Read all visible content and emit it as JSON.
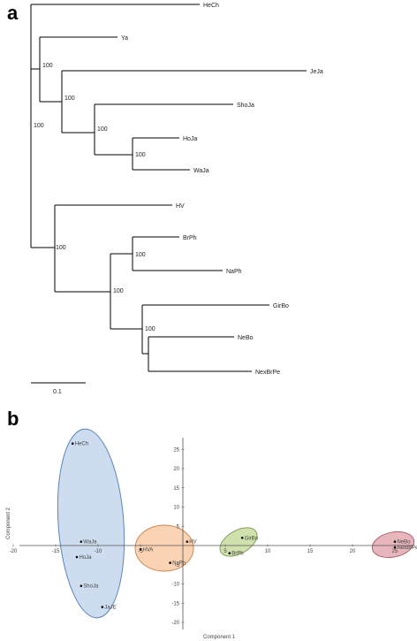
{
  "panel_a": {
    "label": "a",
    "leaves": [
      "HeCh",
      "Ya",
      "JeJa",
      "ShoJa",
      "HoJa",
      "WaJa",
      "HV",
      "BrPh",
      "NaPh",
      "GirBo",
      "NeBo",
      "NexBrPe"
    ],
    "bootstrap": [
      "100",
      "100",
      "100",
      "100",
      "100",
      "100",
      "100",
      "100",
      "100"
    ],
    "scale_label": "0.1"
  },
  "panel_b": {
    "label": "b",
    "xlabel": "Component 1",
    "ylabel": "Component 2",
    "x_ticks": [
      "-20",
      "-15",
      "-10",
      "-5",
      "5",
      "10",
      "15",
      "20",
      "25"
    ],
    "y_ticks": [
      "25",
      "20",
      "15",
      "10",
      "5",
      "-5",
      "-10",
      "-15",
      "-20"
    ],
    "cluster_colors": {
      "blue": "#b8cfe8",
      "orange": "#f7c8a0",
      "green": "#c8dca0",
      "red": "#e3a9b0"
    },
    "points": [
      "HeCh",
      "WaJa",
      "HoJa",
      "ShoJa",
      "JaJE",
      "HVA",
      "HV",
      "NaPh",
      "GirBo",
      "BrPh",
      "NeBo",
      "NexBrPe"
    ]
  },
  "chart_data": {
    "type": "scatter",
    "xlabel": "Component 1",
    "ylabel": "Component 2",
    "xlim": [
      -20,
      28
    ],
    "ylim": [
      -22,
      28
    ],
    "points": [
      {
        "label": "HeCh",
        "x": -13,
        "y": 26.5
      },
      {
        "label": "WaJa",
        "x": -12,
        "y": 1
      },
      {
        "label": "HoJa",
        "x": -12.5,
        "y": -3
      },
      {
        "label": "ShoJa",
        "x": -12,
        "y": -10.5
      },
      {
        "label": "JaJE",
        "x": -9.5,
        "y": -16
      },
      {
        "label": "HVA",
        "x": -5,
        "y": -1
      },
      {
        "label": "HV",
        "x": 0.5,
        "y": 1
      },
      {
        "label": "NaPh",
        "x": -1.5,
        "y": -4.5
      },
      {
        "label": "GirBo",
        "x": 7,
        "y": 2
      },
      {
        "label": "BrPh",
        "x": 5.5,
        "y": -2
      },
      {
        "label": "NeBo",
        "x": 25,
        "y": 1
      },
      {
        "label": "NexBrPe",
        "x": 25,
        "y": -0.5
      }
    ]
  }
}
